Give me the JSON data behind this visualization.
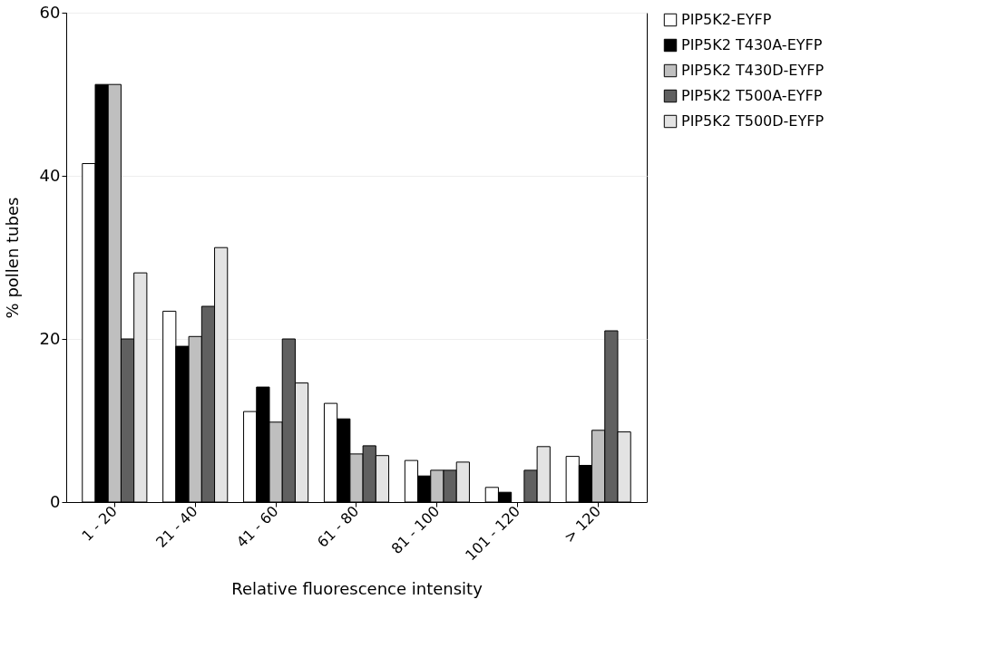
{
  "chart_data": {
    "type": "bar",
    "xlabel": "Relative fluorescence intensity",
    "ylabel": "% pollen tubes",
    "categories": [
      "1 - 20",
      "21 - 40",
      "41 - 60",
      "61 - 80",
      "81 - 100",
      "101 - 120",
      "> 120"
    ],
    "series": [
      {
        "name": "PIP5K2-EYFP",
        "color": "#ffffff",
        "values": [
          41.5,
          23.4,
          11.1,
          12.1,
          5.1,
          1.8,
          5.6
        ]
      },
      {
        "name": "PIP5K2 T430A-EYFP",
        "color": "#000000",
        "values": [
          51.2,
          19.1,
          14.1,
          10.2,
          3.2,
          1.2,
          4.5
        ]
      },
      {
        "name": "PIP5K2 T430D-EYFP",
        "color": "#bfbfbf",
        "values": [
          51.2,
          20.3,
          9.8,
          5.9,
          3.9,
          null,
          8.8
        ]
      },
      {
        "name": "PIP5K2 T500A-EYFP",
        "color": "#606060",
        "values": [
          20.0,
          24.0,
          20.0,
          6.9,
          3.9,
          3.9,
          21.0
        ]
      },
      {
        "name": "PIP5K2 T500D-EYFP",
        "color": "#e3e3e3",
        "values": [
          28.1,
          31.2,
          14.6,
          5.7,
          4.9,
          6.8,
          8.6
        ]
      }
    ],
    "ylim": [
      0,
      60
    ],
    "yticks": [
      0,
      20,
      40,
      60
    ],
    "grid": "y",
    "legend": "right"
  }
}
